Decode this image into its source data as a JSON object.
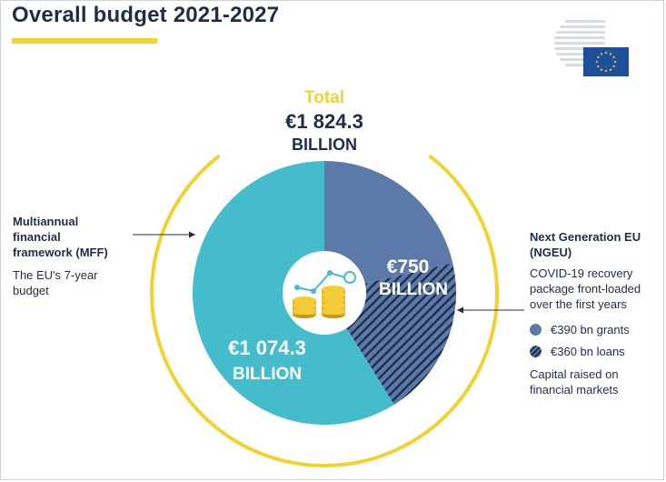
{
  "title": "Overall budget 2021-2027",
  "colors": {
    "title_underline": "#f2d230",
    "ring": "#f2d230",
    "mff": "#45bccb",
    "ngeu": "#5b7aaa",
    "ngeu_hatch": "#1f2d4a",
    "text": "#1f2d4a",
    "eu_flag": "#1d4f9b",
    "eu_star": "#f2d230"
  },
  "logo": {
    "icon": "eu-council-logo-icon"
  },
  "chart_data": {
    "type": "pie",
    "donut": true,
    "unit": "€ billion",
    "total": {
      "label": "Total",
      "value": 1824.3,
      "value_text": "€1 824.3",
      "unit_text": "BILLION"
    },
    "slices": [
      {
        "name": "Multiannual financial framework (MFF)",
        "value": 1074.3,
        "value_text": "€1 074.3",
        "unit_text": "BILLION",
        "color": "#45bccb"
      },
      {
        "name": "Next Generation EU (NGEU)",
        "value": 750,
        "value_text": "€750",
        "unit_text": "BILLION",
        "color": "#5b7aaa",
        "parts": [
          {
            "label": "€390 bn grants",
            "value": 390,
            "pattern": "solid"
          },
          {
            "label": "€360 bn loans",
            "value": 360,
            "pattern": "hatched"
          }
        ]
      }
    ],
    "center_icon": "coins-growth-icon"
  },
  "mff": {
    "heading": "Multiannual\nfinancial\nframework (MFF)",
    "desc": "The EU's 7-year\nbudget"
  },
  "ngeu": {
    "heading": "Next Generation EU\n(NGEU)",
    "desc": "COVID-19 recovery\npackage front-loaded\nover the first years",
    "legend": [
      "€390 bn grants",
      "€360 bn loans"
    ],
    "note": "Capital raised on\nfinancial markets"
  }
}
